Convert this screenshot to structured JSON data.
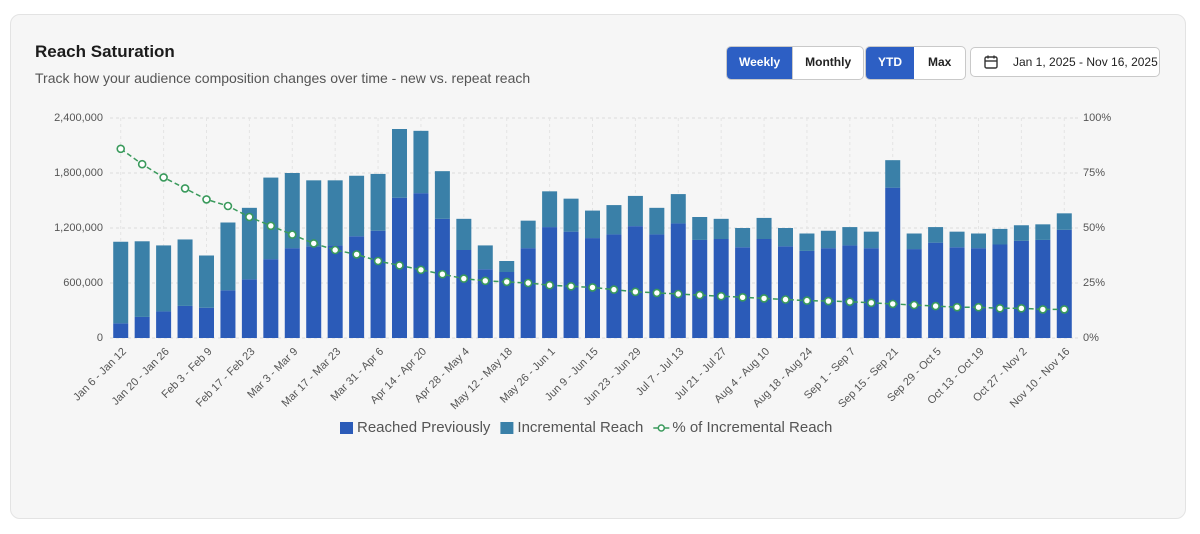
{
  "header": {
    "title": "Reach Saturation",
    "subtitle": "Track how your audience composition changes over time - new vs. repeat reach"
  },
  "controls": {
    "granularity": [
      "Weekly",
      "Monthly"
    ],
    "range": [
      "YTD",
      "Max"
    ],
    "date_range": "Jan 1, 2025 - Nov 16, 2025"
  },
  "chart_data": {
    "type": "stacked_bar_line",
    "categories": [
      "Jan 6 - Jan 12",
      null,
      "Jan 20 - Jan 26",
      null,
      "Feb 3 - Feb 9",
      null,
      "Feb 17 - Feb 23",
      null,
      "Mar 3 - Mar 9",
      null,
      "Mar 17 - Mar 23",
      null,
      "Mar 31 - Apr 6",
      null,
      "Apr 14 - Apr 20",
      null,
      "Apr 28 - May 4",
      null,
      "May 12 - May 18",
      null,
      "May 26 - Jun 1",
      null,
      "Jun 9 - Jun 15",
      null,
      "Jun 23 - Jun 29",
      null,
      "Jul 7 - Jul 13",
      null,
      "Jul 21 - Jul 27",
      null,
      "Aug 4 - Aug 10",
      null,
      "Aug 18 - Aug 24",
      null,
      "Sep 1 - Sep 7",
      null,
      "Sep 15 - Sep 21",
      null,
      "Sep 29 - Oct 5",
      null,
      "Oct 13 - Oct 19",
      null,
      "Oct 27 - Nov 2",
      null,
      "Nov 10 - Nov 16"
    ],
    "series": [
      {
        "name": "Reached Previously",
        "color": "#2b5bb8",
        "values": [
          160000,
          230000,
          290000,
          350000,
          330000,
          520000,
          640000,
          860000,
          980000,
          1000000,
          1010000,
          1110000,
          1170000,
          1530000,
          1580000,
          1300000,
          960000,
          750000,
          720000,
          980000,
          1210000,
          1160000,
          1090000,
          1130000,
          1220000,
          1130000,
          1250000,
          1070000,
          1080000,
          990000,
          1080000,
          1000000,
          950000,
          980000,
          1010000,
          980000,
          1640000,
          970000,
          1040000,
          990000,
          980000,
          1020000,
          1060000,
          1070000,
          1180000
        ]
      },
      {
        "name": "Incremental Reach",
        "color": "#3a80a8",
        "values": [
          890000,
          825000,
          720000,
          725000,
          570000,
          740000,
          780000,
          890000,
          820000,
          720000,
          710000,
          660000,
          620000,
          750000,
          680000,
          520000,
          340000,
          260000,
          120000,
          300000,
          390000,
          360000,
          300000,
          320000,
          330000,
          290000,
          320000,
          250000,
          220000,
          210000,
          230000,
          200000,
          190000,
          190000,
          200000,
          180000,
          300000,
          170000,
          170000,
          170000,
          160000,
          170000,
          170000,
          170000,
          180000
        ]
      },
      {
        "name": "% of Incremental Reach",
        "color": "#3a9a5c",
        "axis": "y2",
        "values": [
          86,
          79,
          73,
          68,
          63,
          60,
          55,
          51,
          47,
          43,
          40,
          38,
          35,
          33,
          31,
          29,
          27,
          26,
          25.5,
          25,
          24,
          23.5,
          23,
          22,
          21,
          20.5,
          20,
          19.5,
          19,
          18.5,
          18,
          17.5,
          17,
          16.8,
          16.5,
          16,
          15.5,
          15,
          14.5,
          14,
          14,
          13.5,
          13.5,
          13,
          13
        ]
      }
    ],
    "ylim": [
      0,
      2400000
    ],
    "yticks": [
      0,
      {
        "value": 600000,
        "label": "600,000"
      },
      {
        "value": 1200000,
        "label": "1,200,000"
      },
      {
        "value": 1800000,
        "label": "1,800,000"
      },
      {
        "value": 2400000,
        "label": "2,400,000"
      }
    ],
    "y2lim": [
      0,
      100
    ],
    "y2ticks": [
      {
        "value": 0,
        "label": "0%"
      },
      {
        "value": 25,
        "label": "25%"
      },
      {
        "value": 50,
        "label": "50%"
      },
      {
        "value": 75,
        "label": "75%"
      },
      {
        "value": 100,
        "label": "100%"
      }
    ],
    "grid": true,
    "legend": "bottom"
  }
}
